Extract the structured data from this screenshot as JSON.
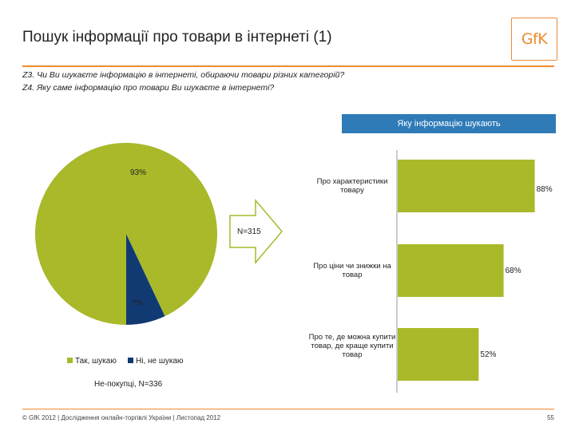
{
  "header": {
    "title": "Пошук інформації про товари в інтернеті (1)",
    "logo_text": "GfK"
  },
  "questions": {
    "q1": "Z3. Чи Ви шукаєте інформацію в інтернеті, обираючи товари різних категорій?",
    "q2": "Z4. Яку саме інформацію про товари Ви шукаєте в інтернеті?"
  },
  "bar_header": "Яку інформацію шукають",
  "arrow_label": "N=315",
  "pie_note": "Не-покупці, N=336",
  "footer": {
    "left": "© GfK 2012 | Дослідження онлайн-торгівлі України | Листопад 2012",
    "page": "55"
  },
  "colors": {
    "olive": "#a9b92a",
    "navy": "#113a73",
    "orange": "#f08a2b",
    "blue_header": "#2e7bb8"
  },
  "chart_data": [
    {
      "type": "pie",
      "labels": [
        "Так, шукаю",
        "Ні, не шукаю"
      ],
      "values": [
        93,
        7
      ],
      "value_labels": [
        "93%",
        "7%"
      ],
      "colors": [
        "#a9b92a",
        "#113a73"
      ],
      "legend_position": "bottom"
    },
    {
      "type": "bar",
      "orientation": "horizontal",
      "categories": [
        "Про характеристики товару",
        "Про ціни чи знижки на товар",
        "Про те, де можна купити товар, де краще купити товар"
      ],
      "category_lines": [
        [
          "Про характеристики",
          "товару"
        ],
        [
          "Про ціни чи знижки на",
          "товар"
        ],
        [
          "Про те, де можна купити",
          "товар, де краще купити",
          "товар"
        ]
      ],
      "values": [
        88,
        68,
        52
      ],
      "value_labels": [
        "88%",
        "68%",
        "52%"
      ],
      "color": "#a9b92a",
      "xlim": [
        0,
        100
      ]
    }
  ]
}
